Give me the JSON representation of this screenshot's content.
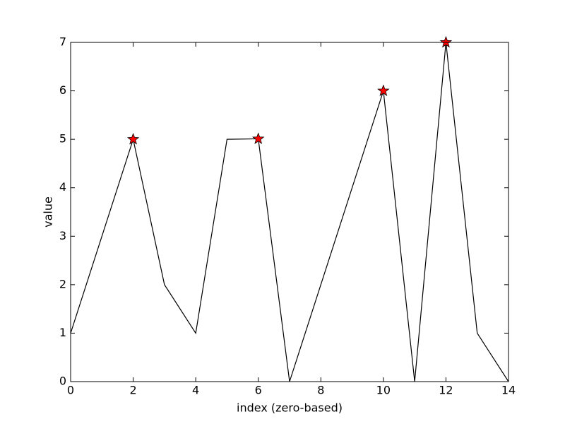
{
  "chart_data": {
    "type": "line",
    "xlabel": "index (zero-based)",
    "ylabel": "value",
    "x": [
      0,
      1,
      2,
      3,
      4,
      5,
      6,
      7,
      8,
      9,
      10,
      11,
      12,
      13,
      14
    ],
    "series": [
      {
        "color": "#000000",
        "values": [
          1,
          3,
          5,
          2,
          1,
          5,
          5.01,
          0,
          2,
          4,
          6,
          0,
          7,
          1,
          0
        ]
      },
      {
        "color": "#ff0000",
        "marker": "star",
        "x": [
          2,
          6,
          10,
          12
        ],
        "values": [
          5,
          5.01,
          6,
          7
        ]
      }
    ],
    "xlim": [
      0,
      14
    ],
    "xticks": [
      0,
      2,
      4,
      6,
      8,
      10,
      12,
      14
    ],
    "ylim": [
      0,
      7
    ],
    "yticks": [
      0,
      1,
      2,
      3,
      4,
      5,
      6,
      7
    ],
    "grid": false
  }
}
